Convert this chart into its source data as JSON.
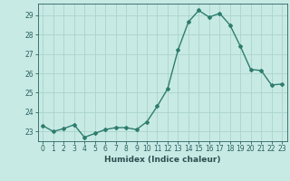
{
  "x": [
    0,
    1,
    2,
    3,
    4,
    5,
    6,
    7,
    8,
    9,
    10,
    11,
    12,
    13,
    14,
    15,
    16,
    17,
    18,
    19,
    20,
    21,
    22,
    23
  ],
  "y": [
    23.3,
    23.0,
    23.15,
    23.35,
    22.7,
    22.9,
    23.1,
    23.2,
    23.2,
    23.1,
    23.5,
    24.3,
    25.2,
    27.2,
    28.65,
    29.25,
    28.9,
    29.1,
    28.5,
    27.4,
    26.2,
    26.15,
    25.4,
    25.45
  ],
  "line_color": "#2e7d6e",
  "marker": "D",
  "markersize": 2.0,
  "linewidth": 1.0,
  "xlabel": "Humidex (Indice chaleur)",
  "xlim": [
    -0.5,
    23.5
  ],
  "ylim": [
    22.5,
    29.6
  ],
  "yticks": [
    23,
    24,
    25,
    26,
    27,
    28,
    29
  ],
  "xticks": [
    0,
    1,
    2,
    3,
    4,
    5,
    6,
    7,
    8,
    9,
    10,
    11,
    12,
    13,
    14,
    15,
    16,
    17,
    18,
    19,
    20,
    21,
    22,
    23
  ],
  "bg_color": "#c8eae4",
  "grid_color": "#aad4cc",
  "tick_color": "#2a6060",
  "label_color": "#2a5050",
  "tick_fontsize": 5.5,
  "xlabel_fontsize": 6.5
}
